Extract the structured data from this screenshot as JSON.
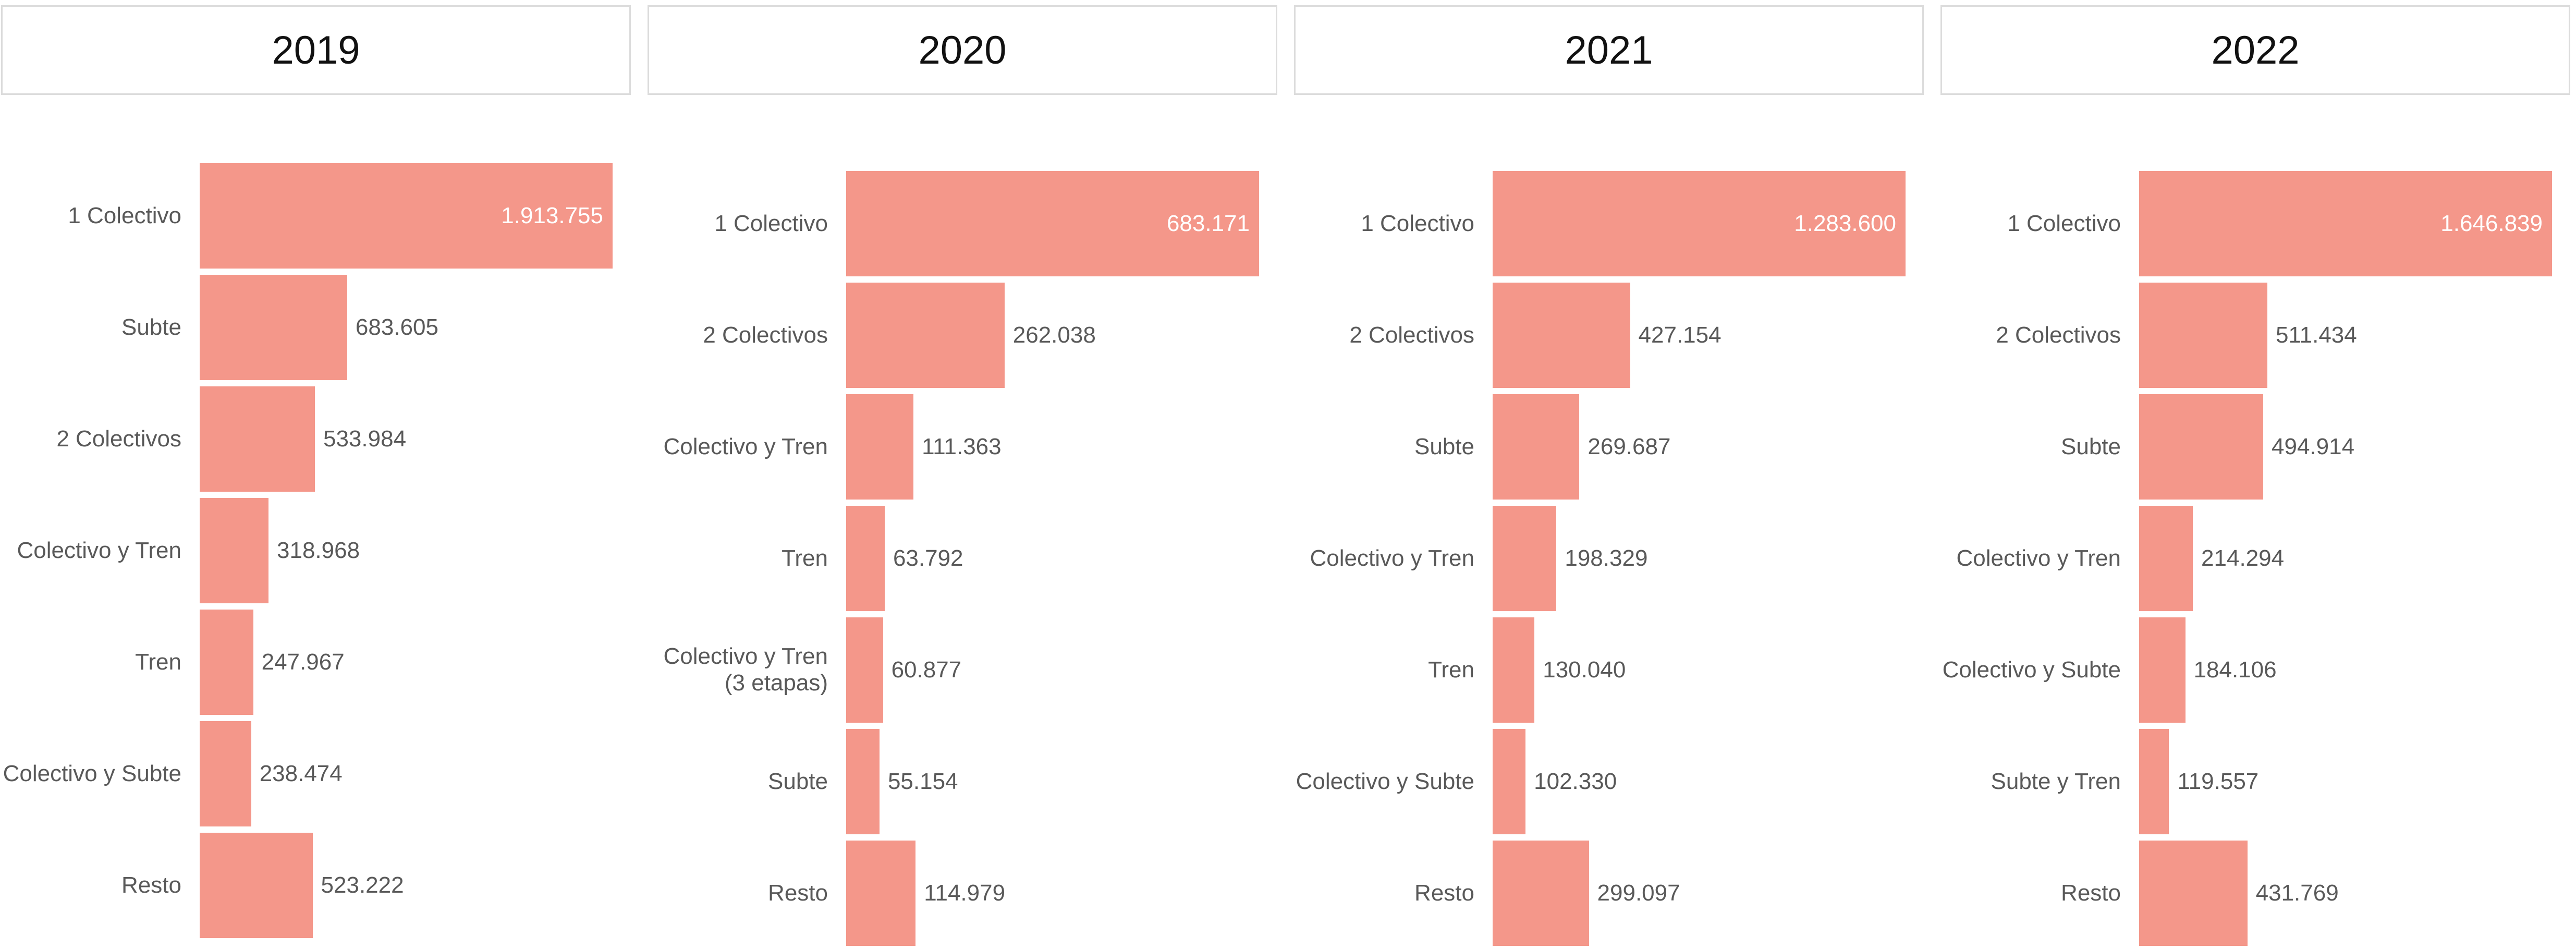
{
  "chart_data": [
    {
      "type": "bar",
      "title": "2019",
      "color": "#f4978a",
      "categories": [
        "1 Colectivo",
        "Subte",
        "2 Colectivos",
        "Colectivo y Tren",
        "Tren",
        "Colectivo y Subte",
        "Resto"
      ],
      "values": [
        1913755,
        683605,
        533984,
        318968,
        247967,
        238474,
        523222
      ],
      "value_labels": [
        "1.913.755",
        "683.605",
        "533.984",
        "318.968",
        "247.967",
        "238.474",
        "523.222"
      ]
    },
    {
      "type": "bar",
      "title": "2020",
      "color": "#f4978a",
      "categories": [
        "1 Colectivo",
        "2 Colectivos",
        "Colectivo y Tren",
        "Tren",
        "Colectivo y Tren\n(3 etapas)",
        "Subte",
        "Resto"
      ],
      "values": [
        683171,
        262038,
        111363,
        63792,
        60877,
        55154,
        114979
      ],
      "value_labels": [
        "683.171",
        "262.038",
        "111.363",
        "63.792",
        "60.877",
        "55.154",
        "114.979"
      ]
    },
    {
      "type": "bar",
      "title": "2021",
      "color": "#f4978a",
      "categories": [
        "1 Colectivo",
        "2 Colectivos",
        "Subte",
        "Colectivo y Tren",
        "Tren",
        "Colectivo y Subte",
        "Resto"
      ],
      "values": [
        1283600,
        427154,
        269687,
        198329,
        130040,
        102330,
        299097
      ],
      "value_labels": [
        "1.283.600",
        "427.154",
        "269.687",
        "198.329",
        "130.040",
        "102.330",
        "299.097"
      ]
    },
    {
      "type": "bar",
      "title": "2022",
      "color": "#f4978a",
      "categories": [
        "1 Colectivo",
        "2 Colectivos",
        "Subte",
        "Colectivo y Tren",
        "Colectivo y Subte",
        "Subte y Tren",
        "Resto"
      ],
      "values": [
        1646839,
        511434,
        494914,
        214294,
        184106,
        119557,
        431769
      ],
      "value_labels": [
        "1.646.839",
        "511.434",
        "494.914",
        "214.294",
        "184.106",
        "119.557",
        "431.769"
      ]
    }
  ]
}
